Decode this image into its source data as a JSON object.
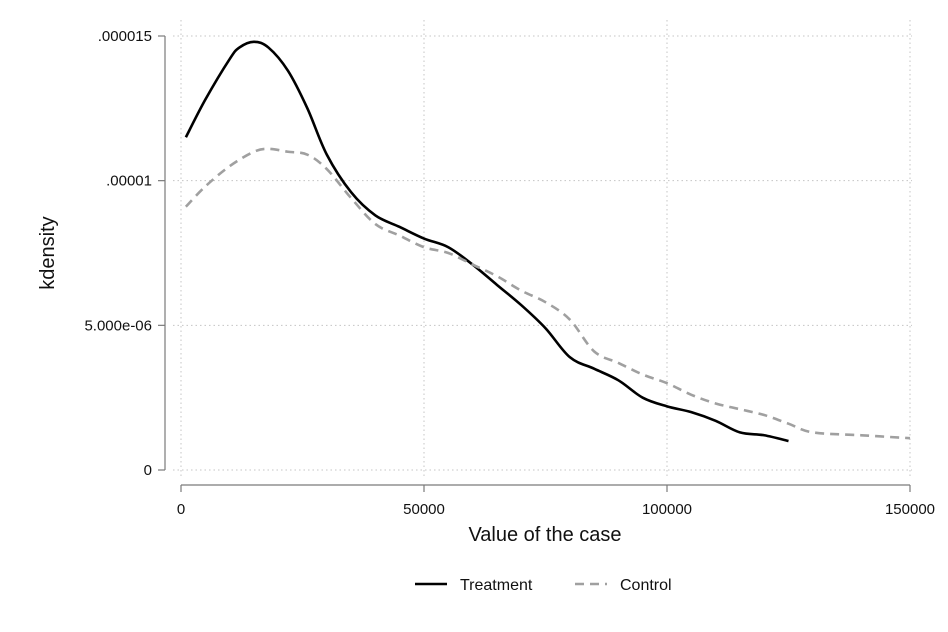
{
  "chart_data": {
    "type": "line",
    "title": "",
    "xlabel": "Value of the case",
    "ylabel": "kdensity",
    "xlim": [
      0,
      150000
    ],
    "ylim": [
      0,
      1.5e-05
    ],
    "x_ticks": [
      0,
      50000,
      100000,
      150000
    ],
    "x_tick_labels": [
      "0",
      "50000",
      "100000",
      "150000"
    ],
    "y_ticks": [
      0,
      5e-06,
      1e-05,
      1.5e-05
    ],
    "y_tick_labels": [
      "0",
      "5.000e-06",
      ".00001",
      ".000015"
    ],
    "grid": true,
    "legend_position": "bottom",
    "series": [
      {
        "name": "Treatment",
        "color": "#000000",
        "style": "solid",
        "points": [
          [
            1000,
            1.15e-05
          ],
          [
            5000,
            1.28e-05
          ],
          [
            10000,
            1.42e-05
          ],
          [
            12000,
            1.46e-05
          ],
          [
            15000,
            1.48e-05
          ],
          [
            18000,
            1.46e-05
          ],
          [
            22000,
            1.38e-05
          ],
          [
            26000,
            1.25e-05
          ],
          [
            30000,
            1.09e-05
          ],
          [
            35000,
            9.6e-06
          ],
          [
            40000,
            8.8e-06
          ],
          [
            45000,
            8.4e-06
          ],
          [
            50000,
            8e-06
          ],
          [
            55000,
            7.7e-06
          ],
          [
            60000,
            7.1e-06
          ],
          [
            65000,
            6.4e-06
          ],
          [
            70000,
            5.7e-06
          ],
          [
            75000,
            4.9e-06
          ],
          [
            80000,
            3.9e-06
          ],
          [
            85000,
            3.5e-06
          ],
          [
            90000,
            3.1e-06
          ],
          [
            95000,
            2.5e-06
          ],
          [
            100000,
            2.2e-06
          ],
          [
            105000,
            2e-06
          ],
          [
            110000,
            1.7e-06
          ],
          [
            115000,
            1.3e-06
          ],
          [
            120000,
            1.2e-06
          ],
          [
            125000,
            1e-06
          ]
        ]
      },
      {
        "name": "Control",
        "color": "#a0a0a0",
        "style": "dashed",
        "points": [
          [
            1000,
            9.1e-06
          ],
          [
            5000,
            9.8e-06
          ],
          [
            10000,
            1.05e-05
          ],
          [
            15000,
            1.1e-05
          ],
          [
            18000,
            1.11e-05
          ],
          [
            22000,
            1.1e-05
          ],
          [
            26000,
            1.09e-05
          ],
          [
            30000,
            1.04e-05
          ],
          [
            35000,
            9.4e-06
          ],
          [
            40000,
            8.5e-06
          ],
          [
            45000,
            8.1e-06
          ],
          [
            50000,
            7.7e-06
          ],
          [
            55000,
            7.5e-06
          ],
          [
            60000,
            7.1e-06
          ],
          [
            65000,
            6.7e-06
          ],
          [
            70000,
            6.2e-06
          ],
          [
            75000,
            5.8e-06
          ],
          [
            80000,
            5.2e-06
          ],
          [
            85000,
            4.1e-06
          ],
          [
            90000,
            3.7e-06
          ],
          [
            95000,
            3.3e-06
          ],
          [
            100000,
            3e-06
          ],
          [
            105000,
            2.6e-06
          ],
          [
            110000,
            2.3e-06
          ],
          [
            115000,
            2.1e-06
          ],
          [
            120000,
            1.9e-06
          ],
          [
            125000,
            1.6e-06
          ],
          [
            130000,
            1.3e-06
          ],
          [
            140000,
            1.2e-06
          ],
          [
            150000,
            1.1e-06
          ]
        ]
      }
    ]
  }
}
